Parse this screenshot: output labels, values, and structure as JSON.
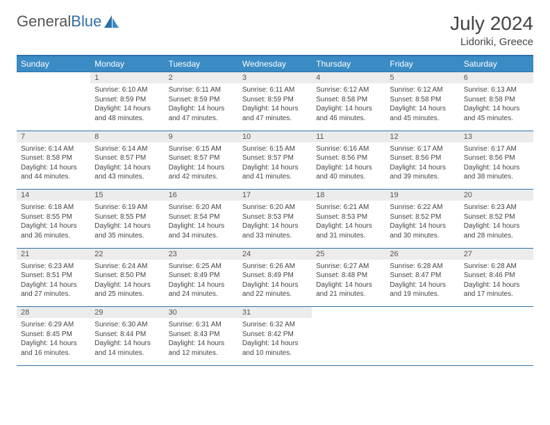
{
  "brand": {
    "part1": "General",
    "part2": "Blue"
  },
  "title": "July 2024",
  "location": "Lidoriki, Greece",
  "colors": {
    "header_bg": "#3b8bc4",
    "header_border": "#2f6fa7",
    "daynum_bg": "#ececec",
    "text": "#444444",
    "brand_gray": "#555555",
    "brand_blue": "#2f6fa7"
  },
  "weekdays": [
    "Sunday",
    "Monday",
    "Tuesday",
    "Wednesday",
    "Thursday",
    "Friday",
    "Saturday"
  ],
  "weeks": [
    {
      "nums": [
        "",
        "1",
        "2",
        "3",
        "4",
        "5",
        "6"
      ],
      "cells": [
        null,
        {
          "sunrise": "6:10 AM",
          "sunset": "8:59 PM",
          "daylight": "14 hours and 48 minutes."
        },
        {
          "sunrise": "6:11 AM",
          "sunset": "8:59 PM",
          "daylight": "14 hours and 47 minutes."
        },
        {
          "sunrise": "6:11 AM",
          "sunset": "8:59 PM",
          "daylight": "14 hours and 47 minutes."
        },
        {
          "sunrise": "6:12 AM",
          "sunset": "8:58 PM",
          "daylight": "14 hours and 46 minutes."
        },
        {
          "sunrise": "6:12 AM",
          "sunset": "8:58 PM",
          "daylight": "14 hours and 45 minutes."
        },
        {
          "sunrise": "6:13 AM",
          "sunset": "8:58 PM",
          "daylight": "14 hours and 45 minutes."
        }
      ]
    },
    {
      "nums": [
        "7",
        "8",
        "9",
        "10",
        "11",
        "12",
        "13"
      ],
      "cells": [
        {
          "sunrise": "6:14 AM",
          "sunset": "8:58 PM",
          "daylight": "14 hours and 44 minutes."
        },
        {
          "sunrise": "6:14 AM",
          "sunset": "8:57 PM",
          "daylight": "14 hours and 43 minutes."
        },
        {
          "sunrise": "6:15 AM",
          "sunset": "8:57 PM",
          "daylight": "14 hours and 42 minutes."
        },
        {
          "sunrise": "6:15 AM",
          "sunset": "8:57 PM",
          "daylight": "14 hours and 41 minutes."
        },
        {
          "sunrise": "6:16 AM",
          "sunset": "8:56 PM",
          "daylight": "14 hours and 40 minutes."
        },
        {
          "sunrise": "6:17 AM",
          "sunset": "8:56 PM",
          "daylight": "14 hours and 39 minutes."
        },
        {
          "sunrise": "6:17 AM",
          "sunset": "8:56 PM",
          "daylight": "14 hours and 38 minutes."
        }
      ]
    },
    {
      "nums": [
        "14",
        "15",
        "16",
        "17",
        "18",
        "19",
        "20"
      ],
      "cells": [
        {
          "sunrise": "6:18 AM",
          "sunset": "8:55 PM",
          "daylight": "14 hours and 36 minutes."
        },
        {
          "sunrise": "6:19 AM",
          "sunset": "8:55 PM",
          "daylight": "14 hours and 35 minutes."
        },
        {
          "sunrise": "6:20 AM",
          "sunset": "8:54 PM",
          "daylight": "14 hours and 34 minutes."
        },
        {
          "sunrise": "6:20 AM",
          "sunset": "8:53 PM",
          "daylight": "14 hours and 33 minutes."
        },
        {
          "sunrise": "6:21 AM",
          "sunset": "8:53 PM",
          "daylight": "14 hours and 31 minutes."
        },
        {
          "sunrise": "6:22 AM",
          "sunset": "8:52 PM",
          "daylight": "14 hours and 30 minutes."
        },
        {
          "sunrise": "6:23 AM",
          "sunset": "8:52 PM",
          "daylight": "14 hours and 28 minutes."
        }
      ]
    },
    {
      "nums": [
        "21",
        "22",
        "23",
        "24",
        "25",
        "26",
        "27"
      ],
      "cells": [
        {
          "sunrise": "6:23 AM",
          "sunset": "8:51 PM",
          "daylight": "14 hours and 27 minutes."
        },
        {
          "sunrise": "6:24 AM",
          "sunset": "8:50 PM",
          "daylight": "14 hours and 25 minutes."
        },
        {
          "sunrise": "6:25 AM",
          "sunset": "8:49 PM",
          "daylight": "14 hours and 24 minutes."
        },
        {
          "sunrise": "6:26 AM",
          "sunset": "8:49 PM",
          "daylight": "14 hours and 22 minutes."
        },
        {
          "sunrise": "6:27 AM",
          "sunset": "8:48 PM",
          "daylight": "14 hours and 21 minutes."
        },
        {
          "sunrise": "6:28 AM",
          "sunset": "8:47 PM",
          "daylight": "14 hours and 19 minutes."
        },
        {
          "sunrise": "6:28 AM",
          "sunset": "8:46 PM",
          "daylight": "14 hours and 17 minutes."
        }
      ]
    },
    {
      "nums": [
        "28",
        "29",
        "30",
        "31",
        "",
        "",
        ""
      ],
      "cells": [
        {
          "sunrise": "6:29 AM",
          "sunset": "8:45 PM",
          "daylight": "14 hours and 16 minutes."
        },
        {
          "sunrise": "6:30 AM",
          "sunset": "8:44 PM",
          "daylight": "14 hours and 14 minutes."
        },
        {
          "sunrise": "6:31 AM",
          "sunset": "8:43 PM",
          "daylight": "14 hours and 12 minutes."
        },
        {
          "sunrise": "6:32 AM",
          "sunset": "8:42 PM",
          "daylight": "14 hours and 10 minutes."
        },
        null,
        null,
        null
      ]
    }
  ],
  "labels": {
    "sunrise": "Sunrise:",
    "sunset": "Sunset:",
    "daylight": "Daylight:"
  }
}
